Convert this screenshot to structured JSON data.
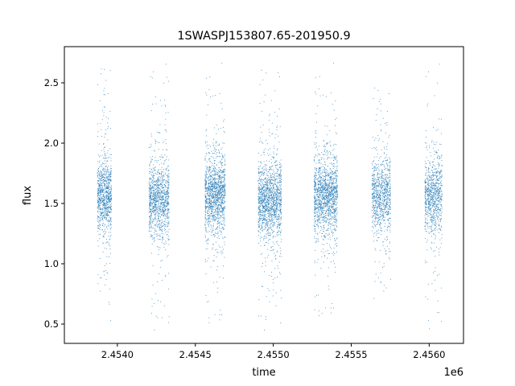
{
  "chart_data": {
    "type": "scatter",
    "title": "1SWASPJ153807.65-201950.9",
    "xlabel": "time",
    "ylabel": "flux",
    "x_offset_label": "1e6",
    "xlim": [
      2.45366,
      2.45622
    ],
    "ylim": [
      0.34,
      2.8
    ],
    "x_ticks": [
      {
        "value": 2.454,
        "label": "2.4540"
      },
      {
        "value": 2.4545,
        "label": "2.4545"
      },
      {
        "value": 2.455,
        "label": "2.4550"
      },
      {
        "value": 2.4555,
        "label": "2.4555"
      },
      {
        "value": 2.456,
        "label": "2.4560"
      }
    ],
    "y_ticks": [
      {
        "value": 0.5,
        "label": "0.5"
      },
      {
        "value": 1.0,
        "label": "1.0"
      },
      {
        "value": 1.5,
        "label": "1.5"
      },
      {
        "value": 2.0,
        "label": "2.0"
      },
      {
        "value": 2.5,
        "label": "2.5"
      }
    ],
    "grid": false,
    "marker_color": "#1f77b4",
    "observing_seasons": [
      {
        "x_start": 2.45387,
        "x_end": 2.45396,
        "y_center": 1.57,
        "y_min": 0.46,
        "y_max": 2.69,
        "count": 900
      },
      {
        "x_start": 2.4542,
        "x_end": 2.45433,
        "y_center": 1.53,
        "y_min": 0.45,
        "y_max": 2.69,
        "count": 1100
      },
      {
        "x_start": 2.45456,
        "x_end": 2.45469,
        "y_center": 1.58,
        "y_min": 0.44,
        "y_max": 2.69,
        "count": 1300
      },
      {
        "x_start": 2.4549,
        "x_end": 2.45505,
        "y_center": 1.53,
        "y_min": 0.45,
        "y_max": 2.62,
        "count": 1400
      },
      {
        "x_start": 2.45526,
        "x_end": 2.45541,
        "y_center": 1.57,
        "y_min": 0.5,
        "y_max": 2.69,
        "count": 1400
      },
      {
        "x_start": 2.45563,
        "x_end": 2.45575,
        "y_center": 1.57,
        "y_min": 0.65,
        "y_max": 2.47,
        "count": 900
      },
      {
        "x_start": 2.45597,
        "x_end": 2.45608,
        "y_center": 1.57,
        "y_min": 0.46,
        "y_max": 2.69,
        "count": 850
      }
    ]
  }
}
